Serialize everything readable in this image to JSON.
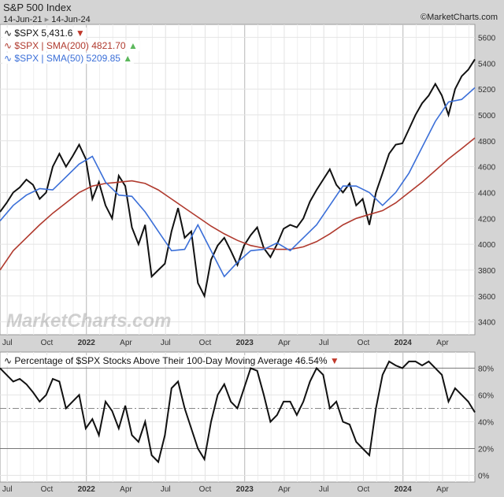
{
  "header": {
    "title": "S&P 500 Index",
    "range_start": "14-Jun-21",
    "range_end": "14-Jun-24",
    "brand": "©MarketCharts.com",
    "watermark": "MarketCharts.com"
  },
  "legend": {
    "spx": "$SPX 5,431.6",
    "sma200": "$SPX | SMA(200) 4821.70",
    "sma50": "$SPX | SMA(50) 5209.85",
    "breadth": "Percentage of $SPX Stocks Above Their 100-Day Moving Average 46.54%"
  },
  "colors": {
    "price": "#111111",
    "sma200": "#b03a2e",
    "sma50": "#3b6fd8",
    "up": "#5cb85c",
    "down": "#c0392b"
  },
  "chart_data": [
    {
      "type": "line",
      "title": "S&P 500 Index",
      "ylim": [
        3300,
        5700
      ],
      "yticks": [
        3400,
        3600,
        3800,
        4000,
        4200,
        4400,
        4600,
        4800,
        5000,
        5200,
        5400,
        5600
      ],
      "xticks": [
        {
          "label": "Jul",
          "m": 0.55
        },
        {
          "label": "Oct",
          "m": 3.55
        },
        {
          "label": "2022",
          "m": 6.55,
          "bold": true
        },
        {
          "label": "Apr",
          "m": 9.55
        },
        {
          "label": "Jul",
          "m": 12.55
        },
        {
          "label": "Oct",
          "m": 15.55
        },
        {
          "label": "2023",
          "m": 18.55,
          "bold": true
        },
        {
          "label": "Apr",
          "m": 21.55
        },
        {
          "label": "Jul",
          "m": 24.55
        },
        {
          "label": "Oct",
          "m": 27.55
        },
        {
          "label": "2024",
          "m": 30.55,
          "bold": true
        },
        {
          "label": "Apr",
          "m": 33.55
        }
      ],
      "series": [
        {
          "name": "$SPX",
          "step_months": 0.5,
          "values": [
            4250,
            4320,
            4400,
            4440,
            4500,
            4460,
            4350,
            4400,
            4600,
            4700,
            4600,
            4680,
            4770,
            4660,
            4350,
            4480,
            4300,
            4200,
            4530,
            4450,
            4130,
            4000,
            4150,
            3750,
            3800,
            3850,
            4100,
            4280,
            4050,
            4100,
            3700,
            3600,
            3880,
            3990,
            4050,
            3950,
            3840,
            3990,
            4070,
            4130,
            3970,
            3900,
            4000,
            4120,
            4150,
            4130,
            4200,
            4330,
            4420,
            4500,
            4580,
            4460,
            4400,
            4470,
            4300,
            4350,
            4150,
            4400,
            4550,
            4700,
            4770,
            4780,
            4890,
            5000,
            5090,
            5150,
            5240,
            5150,
            5000,
            5200,
            5300,
            5350,
            5430
          ]
        },
        {
          "name": "SMA(200)",
          "step_months": 1,
          "values": [
            3800,
            3950,
            4050,
            4150,
            4240,
            4320,
            4400,
            4450,
            4470,
            4480,
            4490,
            4470,
            4420,
            4350,
            4280,
            4210,
            4140,
            4080,
            4030,
            3990,
            3970,
            3960,
            3960,
            3980,
            4020,
            4080,
            4150,
            4200,
            4230,
            4260,
            4320,
            4400,
            4480,
            4570,
            4660,
            4740,
            4822
          ]
        },
        {
          "name": "SMA(50)",
          "step_months": 1,
          "values": [
            4180,
            4300,
            4380,
            4430,
            4420,
            4520,
            4620,
            4680,
            4480,
            4380,
            4370,
            4250,
            4100,
            3950,
            3960,
            4150,
            3950,
            3750,
            3860,
            3950,
            3960,
            4010,
            3950,
            4050,
            4150,
            4300,
            4450,
            4450,
            4400,
            4300,
            4400,
            4550,
            4750,
            4950,
            5100,
            5120,
            5210
          ]
        }
      ]
    },
    {
      "type": "line",
      "title": "Percentage of $SPX Stocks Above Their 100-Day Moving Average",
      "ylim": [
        -5,
        92
      ],
      "yticks": [
        0,
        20,
        40,
        60,
        80
      ],
      "ytick_labels": [
        "0%",
        "20%",
        "40%",
        "60%",
        "80%"
      ],
      "series": [
        {
          "name": "% above 100-DMA",
          "step_months": 0.5,
          "values": [
            80,
            75,
            70,
            72,
            68,
            62,
            55,
            60,
            72,
            70,
            50,
            55,
            60,
            35,
            42,
            30,
            55,
            48,
            35,
            52,
            30,
            25,
            40,
            15,
            10,
            30,
            65,
            70,
            50,
            35,
            20,
            12,
            40,
            60,
            68,
            55,
            50,
            65,
            80,
            78,
            60,
            40,
            45,
            55,
            55,
            45,
            55,
            70,
            80,
            75,
            50,
            55,
            40,
            38,
            25,
            20,
            15,
            50,
            75,
            85,
            82,
            80,
            85,
            85,
            82,
            85,
            80,
            75,
            55,
            65,
            60,
            55,
            47
          ]
        }
      ]
    }
  ]
}
